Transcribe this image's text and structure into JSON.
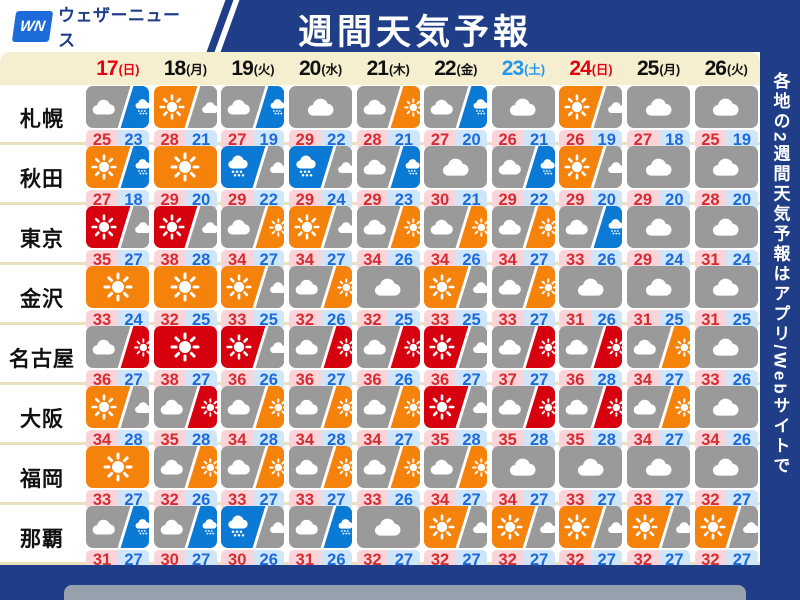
{
  "header": {
    "logo": "WN",
    "brand": "ウェザーニュース",
    "title": "週間天気予報"
  },
  "side_note": "各地の2週間天気予報はアプリ/Webサイトで",
  "colors": {
    "navy": "#203e87",
    "sun": "#f5820a",
    "hotsun": "#d7000f",
    "cloud": "#9a9a9a",
    "rain": "#0b7ad4",
    "hi_bg": "#fbd4d9",
    "hi_text": "#d62b31",
    "lo_bg": "#cfe5fa",
    "lo_text": "#1b6bdb",
    "date_red": "#e60012",
    "date_blue": "#2196f3",
    "date_black": "#111111",
    "header_bg": "#f6efcf"
  },
  "dates": [
    {
      "day": "17",
      "dow": "(日)",
      "color": "red"
    },
    {
      "day": "18",
      "dow": "(月)",
      "color": "black"
    },
    {
      "day": "19",
      "dow": "(火)",
      "color": "black"
    },
    {
      "day": "20",
      "dow": "(水)",
      "color": "black"
    },
    {
      "day": "21",
      "dow": "(木)",
      "color": "black"
    },
    {
      "day": "22",
      "dow": "(金)",
      "color": "black"
    },
    {
      "day": "23",
      "dow": "(土)",
      "color": "blue"
    },
    {
      "day": "24",
      "dow": "(日)",
      "color": "red"
    },
    {
      "day": "25",
      "dow": "(月)",
      "color": "black"
    },
    {
      "day": "26",
      "dow": "(火)",
      "color": "black"
    }
  ],
  "cities": [
    {
      "name": "札幌",
      "cells": [
        [
          "cloud/rain",
          "25",
          "23"
        ],
        [
          "sun/cloud",
          "28",
          "21"
        ],
        [
          "cloud/rain",
          "27",
          "19"
        ],
        [
          "cloud",
          "29",
          "22"
        ],
        [
          "cloud/sun",
          "28",
          "21"
        ],
        [
          "cloud/rain",
          "27",
          "20"
        ],
        [
          "cloud",
          "26",
          "21"
        ],
        [
          "sun/cloud",
          "26",
          "19"
        ],
        [
          "cloud",
          "27",
          "18"
        ],
        [
          "cloud",
          "25",
          "19"
        ]
      ]
    },
    {
      "name": "秋田",
      "cells": [
        [
          "sun/rain",
          "27",
          "18"
        ],
        [
          "sun",
          "29",
          "20"
        ],
        [
          "rain/cloud",
          "29",
          "22"
        ],
        [
          "rain/cloud",
          "29",
          "24"
        ],
        [
          "cloud/rain",
          "29",
          "23"
        ],
        [
          "cloud",
          "30",
          "21"
        ],
        [
          "cloud/rain",
          "29",
          "22"
        ],
        [
          "sun/cloud",
          "29",
          "20"
        ],
        [
          "cloud",
          "29",
          "20"
        ],
        [
          "cloud",
          "28",
          "20"
        ]
      ]
    },
    {
      "name": "東京",
      "cells": [
        [
          "hotsun/cloud",
          "35",
          "27"
        ],
        [
          "hotsun/cloud",
          "38",
          "28"
        ],
        [
          "cloud/sun",
          "34",
          "27"
        ],
        [
          "sun/cloud",
          "34",
          "27"
        ],
        [
          "cloud/sun",
          "34",
          "26"
        ],
        [
          "cloud/sun",
          "34",
          "26"
        ],
        [
          "cloud/sun",
          "34",
          "27"
        ],
        [
          "cloud/rain",
          "33",
          "26"
        ],
        [
          "cloud",
          "29",
          "24"
        ],
        [
          "cloud",
          "31",
          "24"
        ]
      ]
    },
    {
      "name": "金沢",
      "cells": [
        [
          "sun",
          "33",
          "24"
        ],
        [
          "sun",
          "32",
          "25"
        ],
        [
          "sun/cloud",
          "33",
          "25"
        ],
        [
          "cloud/sun",
          "32",
          "26"
        ],
        [
          "cloud",
          "32",
          "25"
        ],
        [
          "sun/cloud",
          "33",
          "25"
        ],
        [
          "cloud/sun",
          "33",
          "27"
        ],
        [
          "cloud",
          "31",
          "26"
        ],
        [
          "cloud",
          "31",
          "25"
        ],
        [
          "cloud",
          "31",
          "25"
        ]
      ]
    },
    {
      "name": "名古屋",
      "cells": [
        [
          "cloud/hotsun",
          "36",
          "27"
        ],
        [
          "hotsun",
          "38",
          "27"
        ],
        [
          "hotsun/cloud",
          "36",
          "26"
        ],
        [
          "cloud/hotsun",
          "36",
          "27"
        ],
        [
          "cloud/hotsun",
          "36",
          "26"
        ],
        [
          "hotsun/cloud",
          "36",
          "27"
        ],
        [
          "cloud/hotsun",
          "37",
          "27"
        ],
        [
          "cloud/hotsun",
          "36",
          "28"
        ],
        [
          "cloud/sun",
          "34",
          "27"
        ],
        [
          "cloud",
          "33",
          "26"
        ]
      ]
    },
    {
      "name": "大阪",
      "cells": [
        [
          "sun/cloud",
          "34",
          "28"
        ],
        [
          "cloud/hotsun",
          "35",
          "28"
        ],
        [
          "cloud/sun",
          "34",
          "28"
        ],
        [
          "cloud/sun",
          "34",
          "28"
        ],
        [
          "cloud/sun",
          "34",
          "27"
        ],
        [
          "hotsun/cloud",
          "35",
          "28"
        ],
        [
          "cloud/hotsun",
          "35",
          "28"
        ],
        [
          "cloud/hotsun",
          "35",
          "28"
        ],
        [
          "cloud/sun",
          "34",
          "27"
        ],
        [
          "cloud",
          "34",
          "26"
        ]
      ]
    },
    {
      "name": "福岡",
      "cells": [
        [
          "sun",
          "33",
          "27"
        ],
        [
          "cloud/sun",
          "32",
          "26"
        ],
        [
          "cloud/sun",
          "33",
          "27"
        ],
        [
          "cloud/sun",
          "33",
          "27"
        ],
        [
          "cloud/sun",
          "33",
          "26"
        ],
        [
          "cloud/sun",
          "34",
          "27"
        ],
        [
          "cloud",
          "34",
          "27"
        ],
        [
          "cloud",
          "33",
          "27"
        ],
        [
          "cloud",
          "33",
          "27"
        ],
        [
          "cloud",
          "32",
          "27"
        ]
      ]
    },
    {
      "name": "那覇",
      "cells": [
        [
          "cloud/rain",
          "31",
          "27"
        ],
        [
          "cloud/rain",
          "30",
          "27"
        ],
        [
          "rain/cloud",
          "30",
          "26"
        ],
        [
          "cloud/rain",
          "31",
          "26"
        ],
        [
          "cloud",
          "32",
          "27"
        ],
        [
          "sun/cloud",
          "32",
          "27"
        ],
        [
          "sun/cloud",
          "32",
          "27"
        ],
        [
          "sun/cloud",
          "32",
          "27"
        ],
        [
          "sun/cloud",
          "32",
          "27"
        ],
        [
          "sun/cloud",
          "32",
          "27"
        ]
      ]
    }
  ]
}
